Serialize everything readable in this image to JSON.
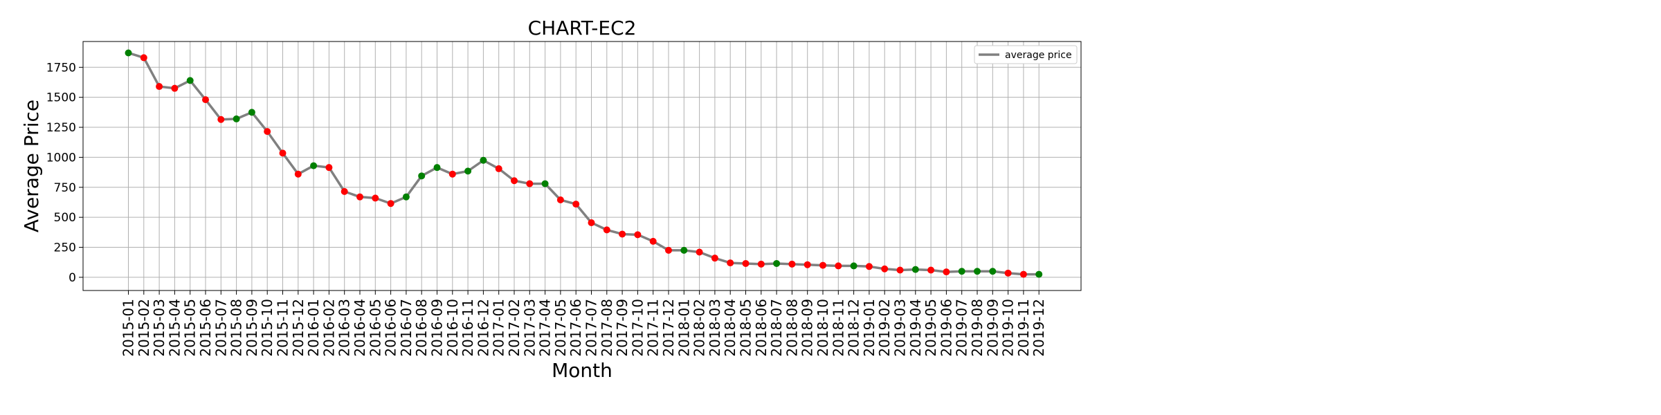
{
  "chart_data": {
    "type": "line",
    "title": "CHART-EC2",
    "xlabel": "Month",
    "ylabel": "Average Price",
    "ylim": [
      -110,
      1965
    ],
    "yticks": [
      0,
      250,
      500,
      750,
      1000,
      1250,
      1500,
      1750
    ],
    "grid": true,
    "legend_position": "top-right",
    "categories": [
      "2015-01",
      "2015-02",
      "2015-03",
      "2015-04",
      "2015-05",
      "2015-06",
      "2015-07",
      "2015-08",
      "2015-09",
      "2015-10",
      "2015-11",
      "2015-12",
      "2016-01",
      "2016-02",
      "2016-03",
      "2016-04",
      "2016-05",
      "2016-06",
      "2016-07",
      "2016-08",
      "2016-09",
      "2016-10",
      "2016-11",
      "2016-12",
      "2017-01",
      "2017-02",
      "2017-03",
      "2017-04",
      "2017-05",
      "2017-06",
      "2017-07",
      "2017-08",
      "2017-09",
      "2017-10",
      "2017-11",
      "2017-12",
      "2018-01",
      "2018-02",
      "2018-03",
      "2018-04",
      "2018-05",
      "2018-06",
      "2018-07",
      "2018-08",
      "2018-09",
      "2018-10",
      "2018-11",
      "2018-12",
      "2019-01",
      "2019-02",
      "2019-03",
      "2019-04",
      "2019-05",
      "2019-06",
      "2019-07",
      "2019-08",
      "2019-09",
      "2019-10",
      "2019-11",
      "2019-12"
    ],
    "series": [
      {
        "name": "average price",
        "color": "#808080",
        "values": [
          1870,
          1830,
          1590,
          1575,
          1640,
          1480,
          1315,
          1320,
          1375,
          1215,
          1035,
          860,
          930,
          915,
          715,
          670,
          660,
          615,
          670,
          845,
          915,
          860,
          885,
          975,
          905,
          805,
          780,
          780,
          645,
          610,
          455,
          395,
          360,
          355,
          300,
          225,
          225,
          210,
          160,
          120,
          115,
          110,
          115,
          110,
          105,
          100,
          95,
          95,
          90,
          70,
          60,
          65,
          60,
          45,
          50,
          50,
          50,
          35,
          25,
          25
        ]
      }
    ],
    "marker_colors": {
      "decrease": "#ff0000",
      "increase": "#008000"
    }
  }
}
